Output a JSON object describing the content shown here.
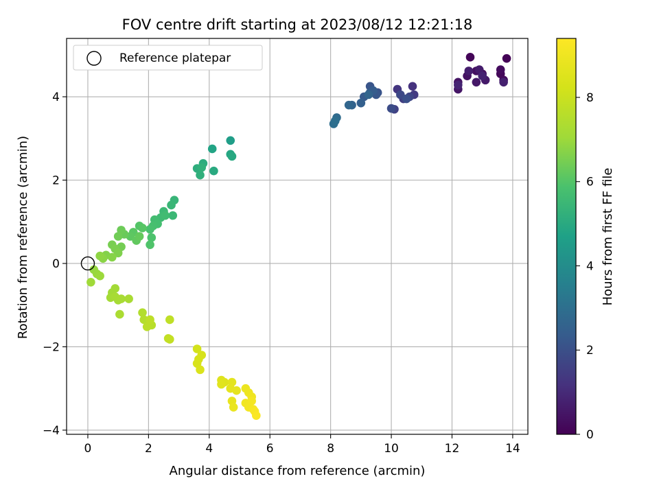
{
  "chart_data": {
    "type": "scatter",
    "title": "FOV centre drift starting at 2023/08/12 12:21:18",
    "xlabel": "Angular distance from reference (arcmin)",
    "ylabel": "Rotation from reference (arcmin)",
    "xlim": [
      -0.7,
      14.5
    ],
    "ylim": [
      -4.1,
      5.4
    ],
    "x_ticks": [
      0,
      2,
      4,
      6,
      8,
      10,
      12,
      14
    ],
    "y_ticks": [
      -4,
      -2,
      0,
      2,
      4
    ],
    "grid": true,
    "legend": {
      "location": "top-left",
      "entries": [
        {
          "label": "Reference platepar",
          "marker": "open-circle"
        }
      ]
    },
    "reference_point": {
      "x": 0,
      "y": 0
    },
    "colorbar": {
      "label": "Hours from first FF file",
      "range": [
        0,
        9.4
      ],
      "ticks": [
        0,
        2,
        4,
        6,
        8
      ],
      "colormap": "viridis"
    },
    "points": [
      {
        "x": 13.8,
        "y": 4.92,
        "c": 0.05
      },
      {
        "x": 12.6,
        "y": 4.95,
        "c": 0.1
      },
      {
        "x": 13.6,
        "y": 4.55,
        "c": 0.15
      },
      {
        "x": 13.7,
        "y": 4.4,
        "c": 0.2
      },
      {
        "x": 13.6,
        "y": 4.65,
        "c": 0.25
      },
      {
        "x": 13.0,
        "y": 4.55,
        "c": 0.3
      },
      {
        "x": 12.8,
        "y": 4.62,
        "c": 0.35
      },
      {
        "x": 12.5,
        "y": 4.5,
        "c": 0.4
      },
      {
        "x": 12.2,
        "y": 4.35,
        "c": 0.45
      },
      {
        "x": 12.2,
        "y": 4.18,
        "c": 0.5
      },
      {
        "x": 12.8,
        "y": 4.35,
        "c": 0.55
      },
      {
        "x": 13.1,
        "y": 4.4,
        "c": 0.6
      },
      {
        "x": 12.9,
        "y": 4.65,
        "c": 0.65
      },
      {
        "x": 12.55,
        "y": 4.62,
        "c": 0.7
      },
      {
        "x": 13.7,
        "y": 4.35,
        "c": 0.75
      },
      {
        "x": 13.0,
        "y": 4.5,
        "c": 0.8
      },
      {
        "x": 12.2,
        "y": 4.28,
        "c": 0.85
      },
      {
        "x": 10.7,
        "y": 4.25,
        "c": 1.2
      },
      {
        "x": 10.2,
        "y": 4.18,
        "c": 1.3
      },
      {
        "x": 10.75,
        "y": 4.05,
        "c": 1.4
      },
      {
        "x": 10.4,
        "y": 3.95,
        "c": 1.5
      },
      {
        "x": 10.1,
        "y": 3.7,
        "c": 1.6
      },
      {
        "x": 10.6,
        "y": 4.0,
        "c": 1.7
      },
      {
        "x": 10.3,
        "y": 4.05,
        "c": 1.8
      },
      {
        "x": 10.0,
        "y": 3.72,
        "c": 1.9
      },
      {
        "x": 10.5,
        "y": 3.95,
        "c": 2.0
      },
      {
        "x": 9.55,
        "y": 4.1,
        "c": 2.1
      },
      {
        "x": 9.3,
        "y": 4.25,
        "c": 2.15
      },
      {
        "x": 9.5,
        "y": 4.05,
        "c": 2.2
      },
      {
        "x": 9.1,
        "y": 4.0,
        "c": 2.3
      },
      {
        "x": 9.3,
        "y": 4.1,
        "c": 2.35
      },
      {
        "x": 9.4,
        "y": 4.15,
        "c": 2.4
      },
      {
        "x": 9.0,
        "y": 3.85,
        "c": 2.5
      },
      {
        "x": 8.7,
        "y": 3.8,
        "c": 2.6
      },
      {
        "x": 9.25,
        "y": 4.05,
        "c": 2.65
      },
      {
        "x": 8.6,
        "y": 3.8,
        "c": 2.7
      },
      {
        "x": 8.2,
        "y": 3.5,
        "c": 2.85
      },
      {
        "x": 8.1,
        "y": 3.35,
        "c": 2.95
      },
      {
        "x": 8.15,
        "y": 3.42,
        "c": 3.0
      },
      {
        "x": 4.7,
        "y": 2.95,
        "c": 4.6
      },
      {
        "x": 4.1,
        "y": 2.75,
        "c": 4.8
      },
      {
        "x": 4.7,
        "y": 2.62,
        "c": 4.9
      },
      {
        "x": 4.75,
        "y": 2.57,
        "c": 4.95
      },
      {
        "x": 4.15,
        "y": 2.22,
        "c": 5.0
      },
      {
        "x": 3.8,
        "y": 2.4,
        "c": 5.1
      },
      {
        "x": 3.6,
        "y": 2.28,
        "c": 5.15
      },
      {
        "x": 3.7,
        "y": 2.12,
        "c": 5.2
      },
      {
        "x": 3.75,
        "y": 2.3,
        "c": 5.25
      },
      {
        "x": 2.85,
        "y": 1.52,
        "c": 5.4
      },
      {
        "x": 2.75,
        "y": 1.4,
        "c": 5.45
      },
      {
        "x": 2.8,
        "y": 1.15,
        "c": 5.5
      },
      {
        "x": 2.5,
        "y": 1.25,
        "c": 5.55
      },
      {
        "x": 2.4,
        "y": 1.1,
        "c": 5.6
      },
      {
        "x": 2.55,
        "y": 1.15,
        "c": 5.65
      },
      {
        "x": 2.2,
        "y": 1.05,
        "c": 5.7
      },
      {
        "x": 2.3,
        "y": 0.95,
        "c": 5.75
      },
      {
        "x": 2.15,
        "y": 0.9,
        "c": 5.8
      },
      {
        "x": 2.05,
        "y": 0.82,
        "c": 5.85
      },
      {
        "x": 2.1,
        "y": 0.62,
        "c": 5.9
      },
      {
        "x": 2.05,
        "y": 0.45,
        "c": 5.95
      },
      {
        "x": 1.7,
        "y": 0.9,
        "c": 6.0
      },
      {
        "x": 1.8,
        "y": 0.85,
        "c": 6.05
      },
      {
        "x": 1.5,
        "y": 0.75,
        "c": 6.1
      },
      {
        "x": 1.4,
        "y": 0.65,
        "c": 6.15
      },
      {
        "x": 1.6,
        "y": 0.55,
        "c": 6.2
      },
      {
        "x": 1.7,
        "y": 0.65,
        "c": 6.25
      },
      {
        "x": 1.2,
        "y": 0.7,
        "c": 6.3
      },
      {
        "x": 1.1,
        "y": 0.8,
        "c": 6.35
      },
      {
        "x": 1.0,
        "y": 0.65,
        "c": 6.4
      },
      {
        "x": 1.1,
        "y": 0.4,
        "c": 6.45
      },
      {
        "x": 0.8,
        "y": 0.45,
        "c": 6.5
      },
      {
        "x": 0.9,
        "y": 0.35,
        "c": 6.55
      },
      {
        "x": 1.0,
        "y": 0.25,
        "c": 6.6
      },
      {
        "x": 0.6,
        "y": 0.2,
        "c": 6.65
      },
      {
        "x": 0.8,
        "y": 0.15,
        "c": 6.7
      },
      {
        "x": 0.5,
        "y": 0.12,
        "c": 6.75
      },
      {
        "x": 0.4,
        "y": 0.18,
        "c": 6.8
      },
      {
        "x": 0.2,
        "y": -0.15,
        "c": 6.9
      },
      {
        "x": 0.3,
        "y": -0.25,
        "c": 6.95
      },
      {
        "x": 0.4,
        "y": -0.3,
        "c": 7.0
      },
      {
        "x": 0.1,
        "y": -0.45,
        "c": 7.05
      },
      {
        "x": 0.8,
        "y": -0.7,
        "c": 7.1
      },
      {
        "x": 0.9,
        "y": -0.6,
        "c": 7.12
      },
      {
        "x": 0.75,
        "y": -0.82,
        "c": 7.15
      },
      {
        "x": 1.0,
        "y": -0.88,
        "c": 7.18
      },
      {
        "x": 0.9,
        "y": -0.8,
        "c": 7.2
      },
      {
        "x": 1.1,
        "y": -0.85,
        "c": 7.22
      },
      {
        "x": 1.35,
        "y": -0.85,
        "c": 7.25
      },
      {
        "x": 1.05,
        "y": -1.22,
        "c": 7.3
      },
      {
        "x": 1.8,
        "y": -1.18,
        "c": 7.45
      },
      {
        "x": 1.85,
        "y": -1.35,
        "c": 7.5
      },
      {
        "x": 2.0,
        "y": -1.42,
        "c": 7.55
      },
      {
        "x": 2.1,
        "y": -1.48,
        "c": 7.6
      },
      {
        "x": 1.95,
        "y": -1.52,
        "c": 7.65
      },
      {
        "x": 2.05,
        "y": -1.35,
        "c": 7.7
      },
      {
        "x": 2.7,
        "y": -1.35,
        "c": 7.75
      },
      {
        "x": 2.65,
        "y": -1.8,
        "c": 7.8
      },
      {
        "x": 2.7,
        "y": -1.82,
        "c": 7.85
      },
      {
        "x": 3.6,
        "y": -2.05,
        "c": 8.2
      },
      {
        "x": 3.65,
        "y": -2.3,
        "c": 8.25
      },
      {
        "x": 3.75,
        "y": -2.2,
        "c": 8.3
      },
      {
        "x": 3.6,
        "y": -2.4,
        "c": 8.35
      },
      {
        "x": 3.7,
        "y": -2.55,
        "c": 8.4
      },
      {
        "x": 4.4,
        "y": -2.8,
        "c": 8.5
      },
      {
        "x": 4.5,
        "y": -2.85,
        "c": 8.55
      },
      {
        "x": 4.4,
        "y": -2.9,
        "c": 8.6
      },
      {
        "x": 4.75,
        "y": -2.85,
        "c": 8.65
      },
      {
        "x": 4.7,
        "y": -3.0,
        "c": 8.7
      },
      {
        "x": 4.9,
        "y": -3.05,
        "c": 8.75
      },
      {
        "x": 4.75,
        "y": -3.3,
        "c": 8.8
      },
      {
        "x": 4.8,
        "y": -3.45,
        "c": 8.85
      },
      {
        "x": 5.2,
        "y": -3.0,
        "c": 8.9
      },
      {
        "x": 5.3,
        "y": -3.1,
        "c": 8.95
      },
      {
        "x": 5.4,
        "y": -3.2,
        "c": 9.0
      },
      {
        "x": 5.2,
        "y": -3.35,
        "c": 9.05
      },
      {
        "x": 5.3,
        "y": -3.45,
        "c": 9.1
      },
      {
        "x": 5.4,
        "y": -3.3,
        "c": 9.15
      },
      {
        "x": 5.45,
        "y": -3.5,
        "c": 9.2
      },
      {
        "x": 5.5,
        "y": -3.55,
        "c": 9.25
      },
      {
        "x": 5.55,
        "y": -3.65,
        "c": 9.3
      }
    ]
  }
}
